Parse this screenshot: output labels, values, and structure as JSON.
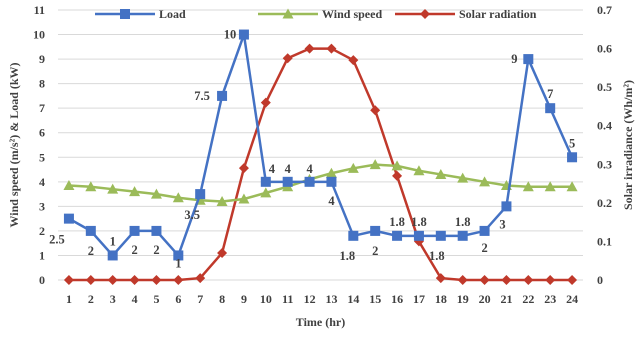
{
  "chart_data": {
    "type": "line",
    "title": "",
    "xlabel": "Time (hr)",
    "ylabel_left": "Wind speed (m/s²) & Load (kW)",
    "ylabel_right": "Solar irradiance (Wh/m²)",
    "x": [
      1,
      2,
      3,
      4,
      5,
      6,
      7,
      8,
      9,
      10,
      11,
      12,
      13,
      14,
      15,
      16,
      17,
      18,
      19,
      20,
      21,
      22,
      23,
      24
    ],
    "x_ticks": [
      "1",
      "2",
      "3",
      "4",
      "5",
      "6",
      "7",
      "8",
      "9",
      "10",
      "11",
      "12",
      "13",
      "14",
      "15",
      "16",
      "17",
      "18",
      "19",
      "20",
      "21",
      "22",
      "23",
      "24"
    ],
    "ylim_left": [
      0,
      11
    ],
    "y_ticks_left": [
      "0",
      "1",
      "2",
      "3",
      "4",
      "5",
      "6",
      "7",
      "8",
      "9",
      "10",
      "11"
    ],
    "ylim_right": [
      0,
      0.7
    ],
    "y_ticks_right": [
      "0",
      "0.1",
      "0.2",
      "0.3",
      "0.4",
      "0.5",
      "0.6",
      "0.7"
    ],
    "grid": true,
    "legend_position": "top",
    "series": [
      {
        "name": "Load",
        "axis": "left",
        "color": "#4472c4",
        "marker": "square",
        "values": [
          2.5,
          2,
          1,
          2,
          2,
          1,
          3.5,
          7.5,
          10,
          4,
          4,
          4,
          4,
          1.8,
          2,
          1.8,
          1.8,
          1.8,
          1.8,
          2,
          3,
          9,
          7,
          5
        ],
        "data_labels": [
          "2.5",
          "2",
          "1",
          "2",
          "2",
          "1",
          "3.5",
          "7.5",
          "10",
          "4",
          "4",
          "4",
          "4",
          "1.8",
          "2",
          "1.8",
          "1.8",
          "1.8",
          "1.8",
          "2",
          "3",
          "9",
          "7",
          "5"
        ]
      },
      {
        "name": "Wind speed",
        "axis": "left",
        "color": "#9bbb59",
        "marker": "triangle",
        "values": [
          3.85,
          3.8,
          3.7,
          3.6,
          3.5,
          3.35,
          3.25,
          3.2,
          3.3,
          3.55,
          3.8,
          4.1,
          4.35,
          4.55,
          4.7,
          4.65,
          4.45,
          4.3,
          4.15,
          4.0,
          3.85,
          3.8,
          3.8,
          3.8
        ]
      },
      {
        "name": "Solar radiation",
        "axis": "right",
        "color": "#c0392b",
        "marker": "diamond",
        "values": [
          0,
          0,
          0,
          0,
          0,
          0,
          0.005,
          0.07,
          0.29,
          0.46,
          0.575,
          0.6,
          0.6,
          0.57,
          0.44,
          0.27,
          0.1,
          0.005,
          0,
          0,
          0,
          0,
          0,
          0
        ]
      }
    ]
  }
}
